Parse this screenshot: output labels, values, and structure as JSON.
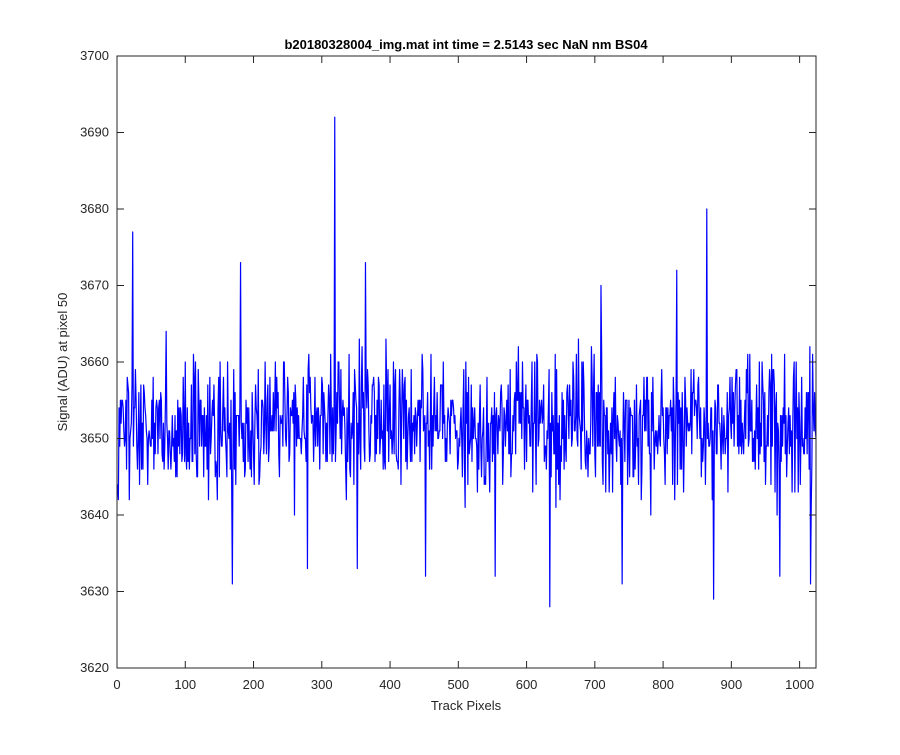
{
  "figure": {
    "background": "#ffffff"
  },
  "chart_data": {
    "type": "line",
    "title": "b20180328004_img.mat int time = 2.5143 sec  NaN nm BS04",
    "xlabel": "Track Pixels",
    "ylabel": "Signal (ADU) at pixel 50",
    "xlim": [
      0,
      1024
    ],
    "ylim": [
      3620,
      3700
    ],
    "xticks": [
      0,
      100,
      200,
      300,
      400,
      500,
      600,
      700,
      800,
      900,
      1000
    ],
    "yticks": [
      3620,
      3630,
      3640,
      3650,
      3660,
      3670,
      3680,
      3690,
      3700
    ],
    "grid": false,
    "legend": "none",
    "series_color": "#0000ff",
    "series": [
      {
        "name": "",
        "x_start": 1,
        "x_step": 1,
        "count": 1024,
        "mean": 3652,
        "noise_range": 9,
        "extremes": [
          {
            "x": 319,
            "y": 3692
          },
          {
            "x": 864,
            "y": 3680
          },
          {
            "x": 23,
            "y": 3677
          },
          {
            "x": 181,
            "y": 3673
          },
          {
            "x": 364,
            "y": 3673
          },
          {
            "x": 820,
            "y": 3672
          },
          {
            "x": 709,
            "y": 3670
          },
          {
            "x": 169,
            "y": 3631
          },
          {
            "x": 634,
            "y": 3628
          },
          {
            "x": 874,
            "y": 3629
          },
          {
            "x": 740,
            "y": 3631
          },
          {
            "x": 971,
            "y": 3632
          },
          {
            "x": 1016,
            "y": 3631
          },
          {
            "x": 554,
            "y": 3632
          },
          {
            "x": 452,
            "y": 3632
          },
          {
            "x": 279,
            "y": 3633
          },
          {
            "x": 352,
            "y": 3633
          }
        ]
      }
    ]
  }
}
